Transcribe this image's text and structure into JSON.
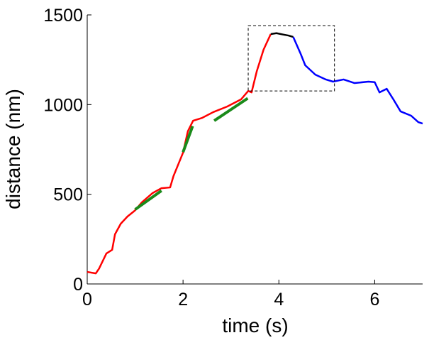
{
  "chart_data": {
    "type": "line",
    "xlabel": "time (s)",
    "ylabel": "distance (nm)",
    "xlim": [
      0,
      7
    ],
    "ylim": [
      0,
      1500
    ],
    "xticks": [
      0,
      2,
      4,
      6
    ],
    "yticks": [
      0,
      500,
      1000,
      1500
    ],
    "grid": false,
    "series": [
      {
        "color": "#ff0000",
        "width": 2.5,
        "x": [
          0,
          0.18,
          0.25,
          0.4,
          0.52,
          0.58,
          0.7,
          0.84,
          0.99,
          1.14,
          1.36,
          1.55,
          1.73,
          1.8,
          1.91,
          2.0,
          2.1,
          2.21,
          2.4,
          2.63,
          2.92,
          3.21,
          3.36,
          3.43,
          3.54,
          3.68,
          3.83
        ],
        "values": [
          67,
          59,
          87,
          170,
          190,
          277,
          336,
          376,
          408,
          455,
          506,
          534,
          538,
          601,
          673,
          732,
          851,
          910,
          926,
          958,
          989,
          1029,
          1076,
          1068,
          1187,
          1306,
          1393
        ]
      },
      {
        "color": "#000000",
        "width": 2.5,
        "x": [
          3.83,
          3.95,
          4.1,
          4.2,
          4.3
        ],
        "values": [
          1393,
          1398,
          1390,
          1385,
          1377
        ]
      },
      {
        "color": "#0000ff",
        "width": 2.5,
        "x": [
          4.3,
          4.45,
          4.55,
          4.76,
          4.98,
          5.13,
          5.35,
          5.58,
          5.87,
          6.0,
          6.1,
          6.25,
          6.39,
          6.54,
          6.76,
          6.91,
          7.0
        ],
        "values": [
          1377,
          1286,
          1219,
          1167,
          1140,
          1128,
          1140,
          1120,
          1128,
          1125,
          1068,
          1088,
          1029,
          962,
          938,
          902,
          894
        ]
      },
      {
        "color": "#1a8a1a",
        "width": 4,
        "x": [
          1.0,
          1.55
        ],
        "values": [
          415,
          520
        ]
      },
      {
        "color": "#1a8a1a",
        "width": 4,
        "x": [
          2.0,
          2.2
        ],
        "values": [
          735,
          880
        ]
      },
      {
        "color": "#1a8a1a",
        "width": 4,
        "x": [
          2.65,
          3.35
        ],
        "values": [
          910,
          1035
        ]
      }
    ],
    "box": {
      "x": [
        3.36,
        5.16
      ],
      "y": [
        1076,
        1440
      ]
    }
  }
}
